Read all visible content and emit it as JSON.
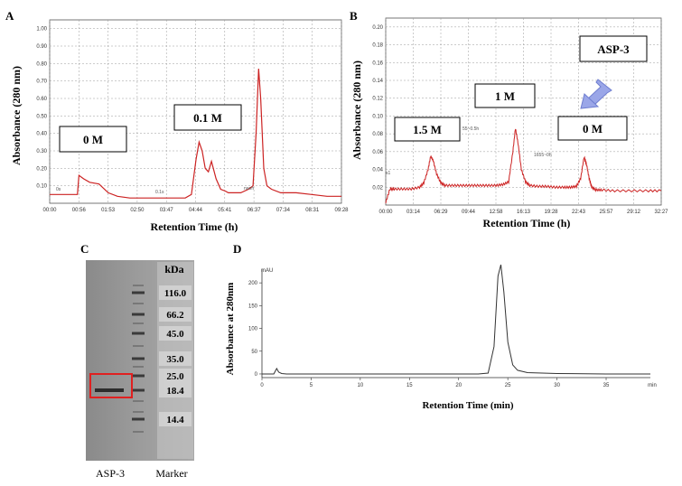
{
  "panels": {
    "A": {
      "letter": "A"
    },
    "B": {
      "letter": "B"
    },
    "C": {
      "letter": "C"
    },
    "D": {
      "letter": "D"
    }
  },
  "chart_data": [
    {
      "id": "A",
      "type": "line",
      "title": "",
      "xlabel": "Retention Time (h)",
      "ylabel": "Absorbance  (280 nm)",
      "x_tick_labels": [
        "00:00",
        "00:56",
        "01:53",
        "02:50",
        "03:47",
        "04:44",
        "05:41",
        "06:37",
        "07:34",
        "08:31",
        "09:28"
      ],
      "y_tick_labels": [
        "0.10",
        "0.20",
        "0.30",
        "0.40",
        "0.50",
        "0.60",
        "0.70",
        "0.80",
        "0.90",
        "1.00"
      ],
      "ylim": [
        0,
        1.05
      ],
      "grid": true,
      "line_color": "#cc2222",
      "series": [
        {
          "x": [
            0,
            0.5,
            0.9,
            0.95,
            1.1,
            1.3,
            1.6,
            1.9,
            2.2,
            2.6,
            3.0,
            3.5,
            3.9,
            4.4,
            4.6,
            4.75,
            4.85,
            4.95,
            5.05,
            5.15,
            5.25,
            5.4,
            5.55,
            5.7,
            5.8,
            5.9,
            6.2,
            6.45,
            6.6,
            6.7,
            6.78,
            6.85,
            6.95,
            7.05,
            7.2,
            7.5,
            8.0,
            8.5,
            9.0,
            9.47
          ],
          "y": [
            0.05,
            0.05,
            0.05,
            0.16,
            0.14,
            0.12,
            0.11,
            0.06,
            0.04,
            0.03,
            0.03,
            0.03,
            0.03,
            0.03,
            0.05,
            0.25,
            0.35,
            0.3,
            0.2,
            0.18,
            0.24,
            0.14,
            0.08,
            0.07,
            0.06,
            0.06,
            0.06,
            0.08,
            0.1,
            0.4,
            0.77,
            0.6,
            0.2,
            0.1,
            0.08,
            0.06,
            0.06,
            0.05,
            0.04,
            0.04
          ]
        }
      ],
      "annotations": [
        {
          "text": "0 M"
        },
        {
          "text": "0.1 M"
        },
        {
          "text": "0s"
        },
        {
          "text": "0.1s"
        },
        {
          "text": "naoh"
        }
      ]
    },
    {
      "id": "B",
      "type": "line",
      "title": "",
      "xlabel": "Retention Time (h)",
      "ylabel": "Absorbance  (280 nm)",
      "x_tick_labels": [
        "00:00",
        "03:14",
        "06:29",
        "09:44",
        "12:58",
        "16:13",
        "19:28",
        "22:43",
        "25:57",
        "29:12",
        "32:27"
      ],
      "y_tick_labels": [
        "0.02",
        "0.04",
        "0.06",
        "0.08",
        "0.10",
        "0.12",
        "0.14",
        "0.16",
        "0.18",
        "0.20"
      ],
      "ylim": [
        0,
        0.21
      ],
      "grid": true,
      "line_color": "#cc2222",
      "series": [
        {
          "x": [
            0,
            0.5,
            1,
            2,
            3,
            4,
            4.5,
            5,
            5.3,
            5.6,
            6,
            6.5,
            7,
            8,
            9,
            10,
            11,
            12,
            13,
            13.8,
            14.5,
            15,
            15.3,
            15.6,
            16,
            16.5,
            17,
            18,
            19,
            20,
            21,
            21.8,
            22.5,
            23,
            23.4,
            23.7,
            24,
            24.3,
            24.8,
            25.5,
            27,
            29,
            31,
            32.5
          ],
          "y": [
            0.003,
            0.018,
            0.018,
            0.018,
            0.018,
            0.02,
            0.025,
            0.04,
            0.055,
            0.05,
            0.035,
            0.025,
            0.022,
            0.022,
            0.022,
            0.022,
            0.022,
            0.022,
            0.022,
            0.023,
            0.026,
            0.06,
            0.086,
            0.07,
            0.04,
            0.026,
            0.022,
            0.021,
            0.021,
            0.02,
            0.02,
            0.02,
            0.021,
            0.03,
            0.054,
            0.045,
            0.03,
            0.02,
            0.017,
            0.017,
            0.016,
            0.016,
            0.016,
            0.016
          ]
        }
      ],
      "annotations": [
        {
          "text": "1.5 M"
        },
        {
          "text": "1 M"
        },
        {
          "text": "0 M"
        },
        {
          "text": "ASP-3"
        },
        {
          "text": "55~0.5h"
        },
        {
          "text": "1655~0h"
        },
        {
          "text": "s1"
        }
      ]
    },
    {
      "id": "C",
      "type": "table",
      "title": "",
      "column_header": "kDa",
      "marker_values": [
        "116.0",
        "66.2",
        "45.0",
        "35.0",
        "25.0",
        "18.4",
        "14.4"
      ],
      "lane_labels": [
        "ASP-3",
        "Marker"
      ],
      "highlight_color": "#e02020"
    },
    {
      "id": "D",
      "type": "line",
      "title": "",
      "xlabel": "Retention Time (min)",
      "ylabel": "Absorbance at 280nm",
      "unit_label": "mAU",
      "x_tick_labels": [
        "0",
        "5",
        "10",
        "15",
        "20",
        "25",
        "30",
        "35",
        "min"
      ],
      "x_ticks": [
        0,
        5,
        10,
        15,
        20,
        25,
        30,
        35
      ],
      "y_tick_labels": [
        "0",
        "50",
        "100",
        "150",
        "200"
      ],
      "y_ticks": [
        0,
        50,
        100,
        150,
        200
      ],
      "xlim": [
        0,
        39.5
      ],
      "ylim": [
        -8,
        230
      ],
      "grid": false,
      "line_color": "#333333",
      "series": [
        {
          "x": [
            0,
            1.2,
            1.5,
            1.7,
            2.0,
            2.5,
            5,
            10,
            15,
            20,
            22,
            23,
            23.6,
            24.0,
            24.3,
            24.6,
            25.0,
            25.5,
            26,
            27,
            30,
            35,
            39.5
          ],
          "y": [
            0,
            0,
            12,
            4,
            1,
            0,
            0,
            0,
            0,
            0,
            0,
            2,
            60,
            215,
            240,
            180,
            70,
            20,
            8,
            3,
            1,
            0,
            0
          ]
        }
      ]
    }
  ]
}
